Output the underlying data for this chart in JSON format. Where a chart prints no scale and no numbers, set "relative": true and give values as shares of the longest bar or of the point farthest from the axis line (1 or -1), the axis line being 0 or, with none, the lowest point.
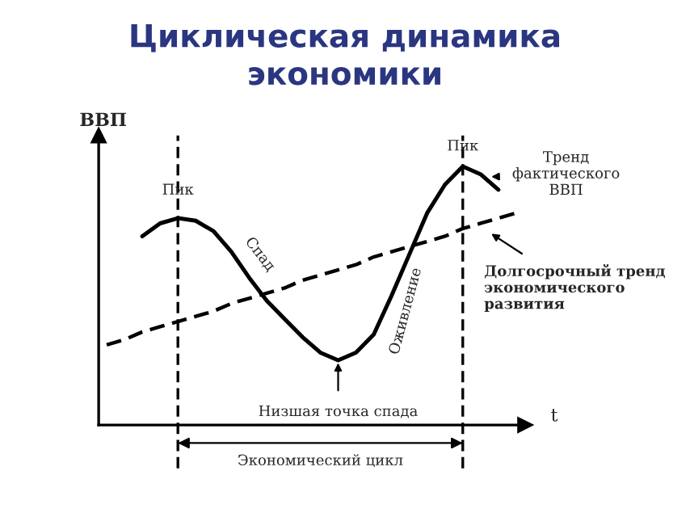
{
  "chart_data": {
    "type": "line",
    "title": "Циклическая динамика\nэкономики",
    "xlabel": "t",
    "ylabel": "ВВП",
    "relative": true,
    "categories": [
      null,
      null,
      null,
      null,
      null,
      null,
      null,
      null,
      null,
      null,
      null,
      null,
      null,
      null,
      null,
      null,
      null,
      null,
      null,
      null,
      null,
      null,
      null,
      null
    ],
    "series": [
      {
        "color": "#000000",
        "line_style": "solid",
        "values": [
          null,
          null,
          0.73,
          0.78,
          0.8,
          0.79,
          0.75,
          0.67,
          0.57,
          0.48,
          0.41,
          0.34,
          0.28,
          0.25,
          0.28,
          0.35,
          0.5,
          0.66,
          0.82,
          0.93,
          1,
          0.97,
          0.91,
          null
        ]
      },
      {
        "color": "#000000",
        "line_style": "dashed",
        "values": [
          0.31,
          0.33,
          0.36,
          0.38,
          0.4,
          0.42,
          0.44,
          0.47,
          0.49,
          0.51,
          0.53,
          0.56,
          0.58,
          0.6,
          0.62,
          0.65,
          0.67,
          0.69,
          0.71,
          0.73,
          0.76,
          0.78,
          0.8,
          0.82
        ]
      }
    ],
    "annotations": [
      "Пик",
      "Пик",
      "Спад",
      "Оживление",
      "Низшая точка спада",
      "Экономический цикл",
      "Тренд\nфактического\nВВП",
      "Долгосрочный тренд\nэкономического\nразвития"
    ],
    "legend": false,
    "marker": "none"
  }
}
